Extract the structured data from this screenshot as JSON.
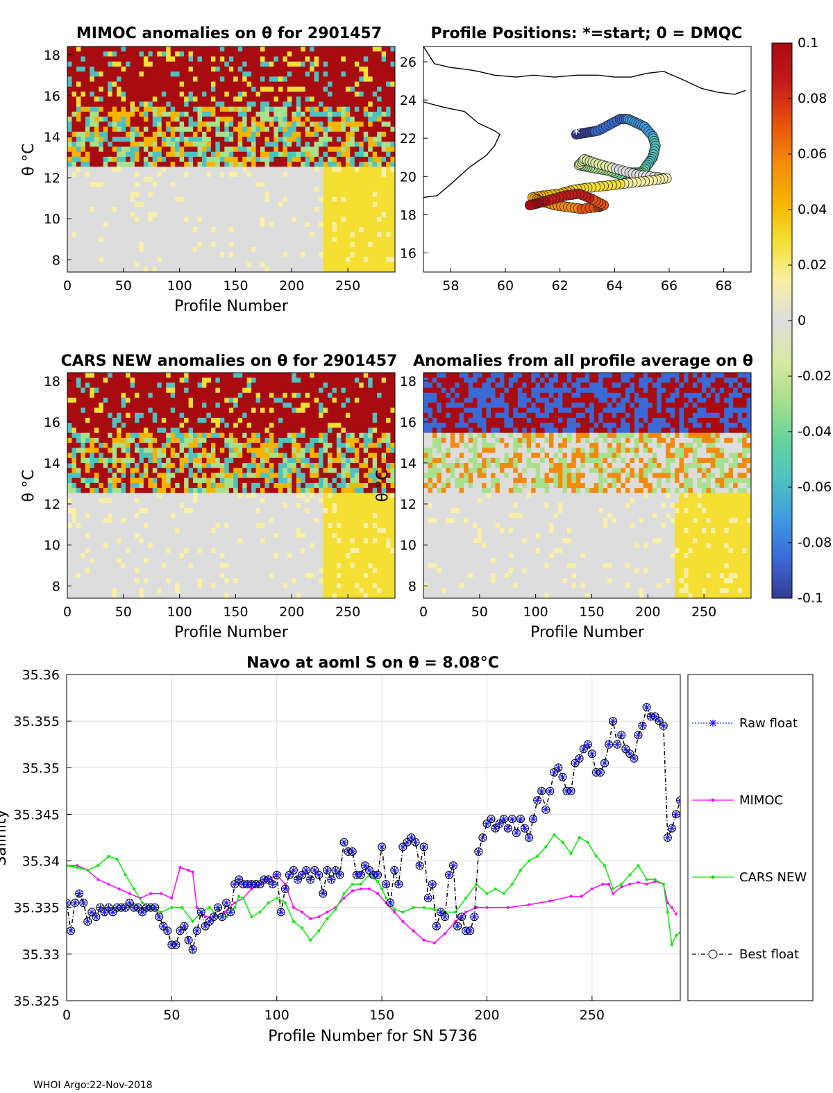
{
  "colors": {
    "raw": "#1a1aff",
    "mimoc": "#ff00ff",
    "cars": "#00ee00",
    "best": "#000000",
    "cmap": [
      "#353b93",
      "#3b6ad6",
      "#3f9be0",
      "#4ec2c1",
      "#66d49a",
      "#a8e08b",
      "#d9e9a2",
      "#dddddd",
      "#f7f0a6",
      "#f4df32",
      "#f5b400",
      "#f48a0d",
      "#e7500e",
      "#c41a1a",
      "#a80c10"
    ]
  },
  "footer": "WHOI Argo:22-Nov-2018",
  "colorbar": {
    "ticks": [
      "0.1",
      "0.08",
      "0.06",
      "0.04",
      "0.02",
      "0",
      "-0.02",
      "-0.04",
      "-0.06",
      "-0.08",
      "-0.1"
    ]
  },
  "panels": {
    "mimoc": {
      "title": "MIMOC anomalies on θ  for 2901457",
      "xlabel": "Profile Number",
      "ylabel": "θ °C"
    },
    "positions": {
      "title": "Profile Positions: *=start; 0 = DMQC"
    },
    "cars": {
      "title": "CARS NEW anomalies on θ for 2901457",
      "xlabel": "Profile Number",
      "ylabel": "θ °C"
    },
    "allavg": {
      "title": "Anomalies from all profile average on θ",
      "xlabel": "Profile Number",
      "ylabel": "θ °C"
    }
  },
  "chart_data": [
    {
      "type": "heatmap",
      "title": "MIMOC anomalies on θ  for 2901457",
      "xlabel": "Profile Number",
      "ylabel": "θ °C",
      "xlim": [
        0,
        292
      ],
      "ylim": [
        7.4,
        18.4
      ],
      "xticks": [
        0,
        50,
        100,
        150,
        200,
        250
      ],
      "yticks": [
        8,
        10,
        12,
        14,
        16,
        18
      ],
      "clim": [
        -0.1,
        0.1
      ]
    },
    {
      "type": "scatter",
      "title": "Profile Positions: *=start; 0 = DMQC",
      "xlim": [
        57,
        69
      ],
      "ylim": [
        15,
        26.8
      ],
      "xticks": [
        58,
        60,
        62,
        64,
        66,
        68
      ],
      "yticks": [
        16,
        18,
        20,
        22,
        24,
        26
      ],
      "start": [
        62.6,
        22.2
      ],
      "track_lon": [
        62.6,
        63.0,
        63.4,
        63.8,
        64.2,
        64.5,
        64.8,
        65.1,
        65.4,
        65.5,
        65.4,
        65.2,
        65.0,
        64.6,
        64.2,
        63.8,
        63.4,
        63.0,
        62.7,
        62.9,
        63.3,
        63.8,
        64.3,
        64.8,
        65.3,
        65.9,
        65.4,
        64.8,
        64.2,
        63.6,
        63.0,
        62.5,
        62.0,
        61.4,
        61.0,
        61.3,
        61.8,
        62.3,
        62.8,
        63.4,
        63.6,
        63.2,
        62.7,
        62.2,
        61.7,
        61.2,
        60.9
      ],
      "track_lat": [
        22.2,
        22.3,
        22.4,
        22.7,
        23.0,
        23.0,
        22.8,
        22.6,
        22.1,
        21.6,
        21.0,
        20.6,
        20.2,
        20.2,
        20.1,
        20.3,
        20.4,
        20.5,
        20.6,
        20.9,
        20.7,
        20.5,
        20.3,
        20.1,
        20.0,
        19.9,
        19.8,
        19.7,
        19.6,
        19.5,
        19.4,
        19.3,
        19.1,
        19.0,
        18.9,
        18.7,
        18.5,
        18.4,
        18.3,
        18.4,
        18.5,
        18.8,
        19.1,
        19.0,
        18.8,
        18.6,
        18.5
      ],
      "coast_north_lon": [
        57.0,
        57.4,
        58.0,
        58.6,
        59.0,
        59.6,
        60.4,
        61.0,
        61.8,
        62.6,
        63.4,
        64.0,
        64.6,
        65.2,
        65.8,
        66.6,
        67.2,
        67.8,
        68.4,
        68.8
      ],
      "coast_north_lat": [
        26.8,
        25.9,
        25.7,
        25.6,
        25.5,
        25.3,
        25.2,
        25.3,
        25.2,
        25.3,
        25.3,
        25.2,
        25.2,
        25.4,
        25.5,
        25.0,
        24.6,
        24.4,
        24.3,
        24.5
      ],
      "coast_oman_lon": [
        57.0,
        57.8,
        58.5,
        59.0,
        59.3,
        59.6,
        59.8,
        59.6,
        59.3,
        58.7,
        58.0,
        57.5,
        57.0
      ],
      "coast_oman_lat": [
        23.9,
        23.6,
        23.4,
        22.8,
        22.6,
        22.4,
        22.2,
        21.6,
        21.1,
        20.5,
        19.6,
        19.0,
        18.9
      ],
      "clim_note": "points colored by profile number"
    },
    {
      "type": "heatmap",
      "title": "CARS NEW anomalies on θ for 2901457",
      "xlabel": "Profile Number",
      "ylabel": "θ °C",
      "xlim": [
        0,
        292
      ],
      "ylim": [
        7.4,
        18.4
      ],
      "xticks": [
        0,
        50,
        100,
        150,
        200,
        250
      ],
      "yticks": [
        8,
        10,
        12,
        14,
        16,
        18
      ],
      "clim": [
        -0.1,
        0.1
      ]
    },
    {
      "type": "heatmap",
      "title": "Anomalies from all profile average on θ",
      "xlabel": "Profile Number",
      "ylabel": "θ °C",
      "xlim": [
        0,
        292
      ],
      "ylim": [
        7.4,
        18.4
      ],
      "xticks": [
        0,
        50,
        100,
        150,
        200,
        250
      ],
      "yticks": [
        8,
        10,
        12,
        14,
        16,
        18
      ],
      "clim": [
        -0.1,
        0.1
      ]
    },
    {
      "type": "line",
      "title": "Navo at aoml S on θ = 8.08°C",
      "xlabel": "Profile Number for SN 5736",
      "ylabel": "Salinity",
      "xlim": [
        0,
        292
      ],
      "ylim": [
        35.325,
        35.36
      ],
      "xticks": [
        0,
        50,
        100,
        150,
        200,
        250
      ],
      "yticks": [
        35.325,
        35.33,
        35.335,
        35.34,
        35.345,
        35.35,
        35.355,
        35.36
      ],
      "ytick_labels": [
        "35.325",
        "35.33",
        "35.335",
        "35.34",
        "35.345",
        "35.35",
        "35.355",
        "35.36"
      ],
      "grid": true,
      "legend": [
        "Raw float",
        "MIMOC",
        "CARS NEW",
        "Best float"
      ],
      "series": [
        {
          "name": "Raw float",
          "x": [
            0,
            2,
            4,
            6,
            8,
            10,
            12,
            14,
            16,
            18,
            20,
            22,
            24,
            26,
            28,
            30,
            32,
            34,
            36,
            38,
            40,
            42,
            44,
            46,
            48,
            50,
            52,
            54,
            56,
            58,
            60,
            62,
            64,
            66,
            68,
            70,
            72,
            74,
            76,
            78,
            80,
            82,
            84,
            86,
            88,
            90,
            92,
            94,
            96,
            98,
            100,
            102,
            104,
            106,
            108,
            110,
            112,
            114,
            116,
            118,
            120,
            122,
            124,
            126,
            128,
            130,
            132,
            134,
            136,
            138,
            140,
            142,
            144,
            146,
            148,
            150,
            152,
            154,
            156,
            158,
            160,
            162,
            164,
            166,
            168,
            170,
            172,
            174,
            176,
            178,
            180,
            182,
            184,
            186,
            188,
            190,
            192,
            194,
            196,
            198,
            200,
            202,
            204,
            206,
            208,
            210,
            212,
            214,
            216,
            218,
            220,
            222,
            224,
            226,
            228,
            230,
            232,
            234,
            236,
            238,
            240,
            242,
            244,
            246,
            248,
            250,
            252,
            254,
            256,
            258,
            260,
            262,
            264,
            266,
            268,
            270,
            272,
            274,
            276,
            278,
            280,
            282,
            284,
            286,
            288,
            290,
            292
          ],
          "values": [
            35.3355,
            35.3325,
            35.3355,
            35.3365,
            35.3355,
            35.3335,
            35.3345,
            35.334,
            35.335,
            35.3345,
            35.335,
            35.3345,
            35.335,
            35.335,
            35.335,
            35.3355,
            35.335,
            35.335,
            35.3345,
            35.335,
            35.335,
            35.335,
            35.334,
            35.333,
            35.3325,
            35.331,
            35.331,
            35.3325,
            35.333,
            35.3315,
            35.3305,
            35.3325,
            35.3345,
            35.333,
            35.3335,
            35.334,
            35.335,
            35.334,
            35.3355,
            35.3345,
            35.3375,
            35.338,
            35.3375,
            35.3375,
            35.3375,
            35.3375,
            35.3375,
            35.338,
            35.338,
            35.3375,
            35.3385,
            35.3345,
            35.337,
            35.3385,
            35.339,
            35.338,
            35.3385,
            35.339,
            35.338,
            35.339,
            35.3385,
            35.3365,
            35.339,
            35.338,
            35.339,
            35.3385,
            35.342,
            35.341,
            35.341,
            35.3385,
            35.3385,
            35.3395,
            35.339,
            35.3385,
            35.3385,
            35.3415,
            35.3375,
            35.3355,
            35.339,
            35.3375,
            35.3415,
            35.342,
            35.3425,
            35.342,
            35.3395,
            35.3415,
            35.336,
            35.3375,
            35.333,
            35.3345,
            35.334,
            35.3385,
            35.3395,
            35.333,
            35.334,
            35.3325,
            35.3325,
            35.334,
            35.341,
            35.3425,
            35.344,
            35.3445,
            35.3435,
            35.344,
            35.3445,
            35.3435,
            35.3445,
            35.343,
            35.3445,
            35.3435,
            35.3425,
            35.3445,
            35.3465,
            35.3475,
            35.3455,
            35.3475,
            35.3495,
            35.35,
            35.349,
            35.3475,
            35.3475,
            35.3505,
            35.351,
            35.352,
            35.3525,
            35.3515,
            35.3495,
            35.3495,
            35.3505,
            35.3525,
            35.355,
            35.3525,
            35.3535,
            35.352,
            35.3515,
            35.351,
            35.3535,
            35.3545,
            35.3565,
            35.3555,
            35.3555,
            35.355,
            35.3545,
            35.3425,
            35.3435,
            35.345,
            35.3465
          ]
        },
        {
          "name": "MIMOC",
          "x": [
            0,
            5,
            10,
            15,
            20,
            25,
            30,
            35,
            40,
            45,
            50,
            54,
            58,
            60,
            62,
            66,
            70,
            75,
            80,
            84,
            88,
            92,
            96,
            100,
            104,
            108,
            112,
            116,
            120,
            124,
            128,
            132,
            136,
            140,
            144,
            148,
            152,
            156,
            160,
            165,
            170,
            175,
            180,
            185,
            190,
            195,
            200,
            210,
            220,
            230,
            240,
            245,
            250,
            255,
            258,
            260,
            264,
            268,
            272,
            276,
            280,
            284,
            286,
            288,
            290
          ],
          "values": [
            35.3395,
            35.3395,
            35.339,
            35.338,
            35.3375,
            35.337,
            35.3365,
            35.336,
            35.3365,
            35.3365,
            35.336,
            35.3393,
            35.339,
            35.3388,
            35.335,
            35.334,
            35.334,
            35.3345,
            35.3355,
            35.336,
            35.337,
            35.3375,
            35.338,
            35.3385,
            35.3375,
            35.335,
            35.3345,
            35.3338,
            35.334,
            35.3345,
            35.335,
            35.336,
            35.3368,
            35.337,
            35.337,
            35.3365,
            35.3355,
            35.3345,
            35.3335,
            35.3325,
            35.3315,
            35.3312,
            35.3322,
            35.3335,
            35.3345,
            35.335,
            35.335,
            35.335,
            35.3353,
            35.3357,
            35.3362,
            35.3362,
            35.337,
            35.3375,
            35.3375,
            35.3365,
            35.3372,
            35.3375,
            35.3377,
            35.3375,
            35.3378,
            35.3375,
            35.3355,
            35.335,
            35.3343
          ]
        },
        {
          "name": "CARS NEW",
          "x": [
            0,
            5,
            10,
            15,
            20,
            24,
            28,
            32,
            36,
            40,
            45,
            50,
            55,
            60,
            64,
            68,
            72,
            76,
            80,
            82,
            84,
            88,
            92,
            96,
            100,
            104,
            108,
            112,
            116,
            120,
            124,
            128,
            132,
            136,
            140,
            144,
            148,
            150,
            152,
            156,
            160,
            165,
            170,
            175,
            180,
            185,
            190,
            195,
            200,
            204,
            208,
            212,
            216,
            220,
            224,
            228,
            232,
            236,
            240,
            244,
            248,
            252,
            256,
            260,
            264,
            268,
            272,
            276,
            280,
            284,
            286,
            288,
            290,
            292
          ],
          "values": [
            35.3395,
            35.3393,
            35.339,
            35.3395,
            35.3405,
            35.3402,
            35.3385,
            35.337,
            35.3355,
            35.335,
            35.3345,
            35.335,
            35.335,
            35.3335,
            35.3345,
            35.335,
            35.334,
            35.334,
            35.335,
            35.3362,
            35.336,
            35.334,
            35.3345,
            35.3355,
            35.336,
            35.3355,
            35.3335,
            35.3328,
            35.3315,
            35.3325,
            35.3338,
            35.3348,
            35.3365,
            35.3375,
            35.3375,
            35.3385,
            35.3378,
            35.337,
            35.336,
            35.3348,
            35.3345,
            35.335,
            35.335,
            35.3348,
            35.3345,
            35.3345,
            35.336,
            35.3375,
            35.3365,
            35.337,
            35.3365,
            35.3375,
            35.339,
            35.34,
            35.3405,
            35.3415,
            35.3428,
            35.342,
            35.3408,
            35.3425,
            35.342,
            35.3405,
            35.3395,
            35.337,
            35.3375,
            35.3385,
            35.3395,
            35.338,
            35.338,
            35.3375,
            35.3345,
            35.331,
            35.332,
            35.3323
          ]
        },
        {
          "name": "Best float",
          "note": "same as Raw float (black circle markers)"
        }
      ]
    }
  ]
}
